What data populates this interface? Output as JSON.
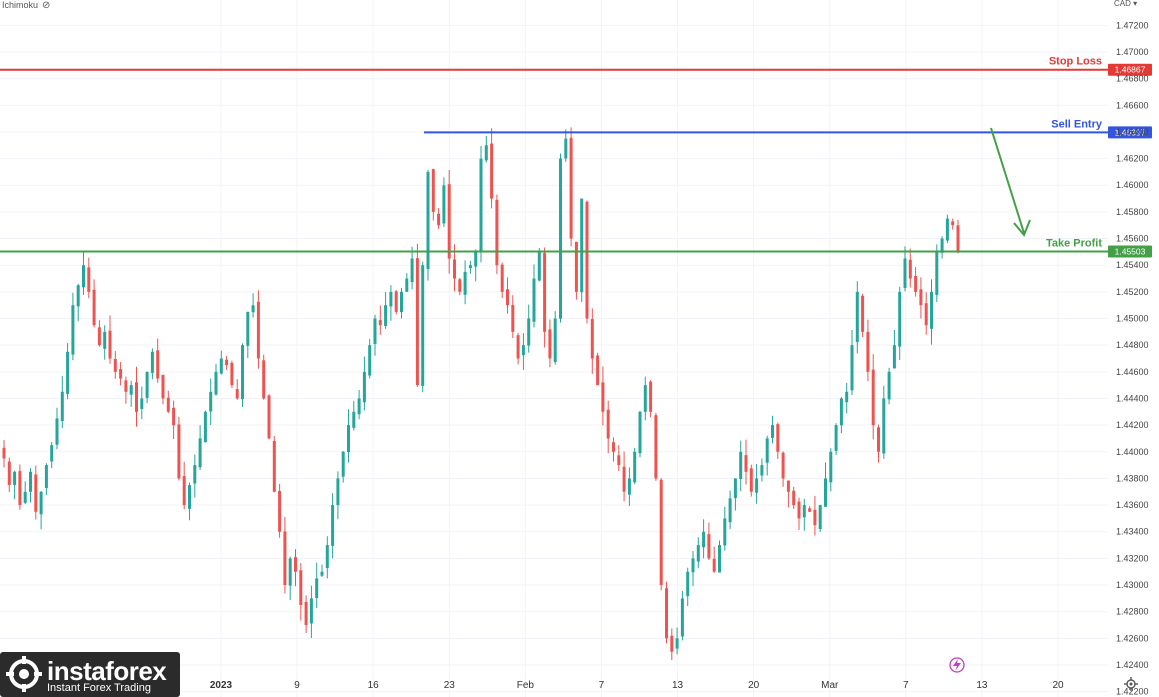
{
  "header": {
    "indicator_label": "Ichimoku",
    "eye_icon": "eye-off-icon",
    "currency": "CAD"
  },
  "logo": {
    "brand": "instaforex",
    "tagline": "Instant Forex Trading"
  },
  "colors": {
    "up": "#26a69a",
    "down": "#ef5350",
    "stop_loss": "#e53935",
    "sell_entry": "#3355e0",
    "take_profit": "#43a047"
  },
  "chart_data": {
    "type": "candlestick",
    "y_axis": {
      "range": [
        1.4216,
        1.4739
      ],
      "ticks": [
        "1.47200",
        "1.47000",
        "1.46800",
        "1.46600",
        "1.46400",
        "1.46200",
        "1.46000",
        "1.45800",
        "1.45600",
        "1.45400",
        "1.45200",
        "1.45000",
        "1.44800",
        "1.44600",
        "1.44400",
        "1.44200",
        "1.44000",
        "1.43800",
        "1.43600",
        "1.43400",
        "1.43200",
        "1.43000",
        "1.42800",
        "1.42600",
        "1.42400",
        "1.42200"
      ]
    },
    "x_axis": {
      "labels": [
        {
          "text": "2023",
          "bold": true
        },
        {
          "text": "9",
          "bold": false
        },
        {
          "text": "16",
          "bold": false
        },
        {
          "text": "23",
          "bold": false
        },
        {
          "text": "Feb",
          "bold": false
        },
        {
          "text": "7",
          "bold": false
        },
        {
          "text": "13",
          "bold": false
        },
        {
          "text": "20",
          "bold": false
        },
        {
          "text": "Mar",
          "bold": false
        },
        {
          "text": "7",
          "bold": false
        },
        {
          "text": "13",
          "bold": false
        },
        {
          "text": "20",
          "bold": false
        }
      ]
    },
    "levels": [
      {
        "name": "Stop Loss",
        "value": 1.46867,
        "label": "1.46867",
        "color": "#e53935"
      },
      {
        "name": "Sell Entry",
        "value": 1.46397,
        "label": "1.46397",
        "color": "#3355e0"
      },
      {
        "name": "Take Profit",
        "value": 1.45503,
        "label": "1.45503",
        "color": "#43a047"
      }
    ],
    "closes": [
      1.4395,
      1.4375,
      1.4385,
      1.436,
      1.437,
      1.4385,
      1.4355,
      1.437,
      1.439,
      1.4405,
      1.4425,
      1.4445,
      1.4475,
      1.451,
      1.4525,
      1.454,
      1.452,
      1.4495,
      1.448,
      1.449,
      1.447,
      1.446,
      1.4455,
      1.4445,
      1.445,
      1.443,
      1.444,
      1.446,
      1.4475,
      1.4455,
      1.444,
      1.443,
      1.442,
      1.438,
      1.436,
      1.4375,
      1.439,
      1.441,
      1.443,
      1.4445,
      1.446,
      1.447,
      1.4465,
      1.445,
      1.444,
      1.448,
      1.4505,
      1.451,
      1.447,
      1.444,
      1.441,
      1.437,
      1.434,
      1.43,
      1.432,
      1.431,
      1.4285,
      1.427,
      1.429,
      1.4305,
      1.431,
      1.433,
      1.436,
      1.438,
      1.44,
      1.442,
      1.443,
      1.444,
      1.446,
      1.448,
      1.45,
      1.4495,
      1.451,
      1.452,
      1.4505,
      1.452,
      1.453,
      1.4545,
      1.445,
      1.454,
      1.461,
      1.458,
      1.457,
      1.46,
      1.4545,
      1.453,
      1.452,
      1.4535,
      1.454,
      1.455,
      1.462,
      1.463,
      1.459,
      1.454,
      1.452,
      1.451,
      1.449,
      1.447,
      1.448,
      1.45,
      1.453,
      1.455,
      1.449,
      1.447,
      1.45,
      1.462,
      1.4635,
      1.456,
      1.452,
      1.459,
      1.45,
      1.447,
      1.445,
      1.443,
      1.441,
      1.44,
      1.439,
      1.437,
      1.438,
      1.44,
      1.443,
      1.445,
      1.443,
      1.438,
      1.43,
      1.426,
      1.425,
      1.426,
      1.429,
      1.431,
      1.432,
      1.433,
      1.434,
      1.432,
      1.431,
      1.433,
      1.435,
      1.4365,
      1.438,
      1.44,
      1.4385,
      1.437,
      1.438,
      1.439,
      1.441,
      1.442,
      1.44,
      1.438,
      1.437,
      1.436,
      1.435,
      1.436,
      1.4355,
      1.4345,
      1.436,
      1.438,
      1.44,
      1.442,
      1.444,
      1.4445,
      1.448,
      1.452,
      1.449,
      1.446,
      1.442,
      1.44,
      1.444,
      1.446,
      1.448,
      1.452,
      1.4545,
      1.453,
      1.452,
      1.451,
      1.4495,
      1.452,
      1.455,
      1.456,
      1.4575,
      1.457,
      1.455
    ]
  }
}
